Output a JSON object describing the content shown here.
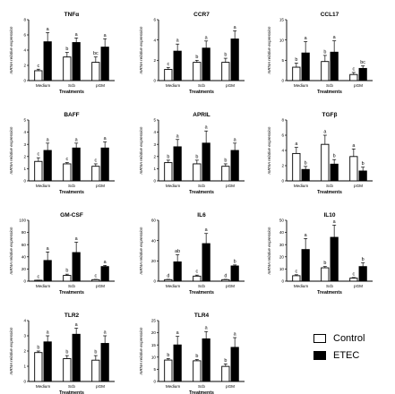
{
  "legend": {
    "control_label": "Control",
    "etec_label": "ETEC",
    "control_color": "#ffffff",
    "etec_color": "#000000"
  },
  "chart_data": [
    {
      "type": "bar",
      "title": "TNFα",
      "ylabel": "mRNA relative expression",
      "xlabel": "Treatments",
      "categories": [
        "Medium",
        "Scb",
        "pGM"
      ],
      "ylim": [
        0,
        8
      ],
      "yticks": [
        0,
        2,
        4,
        6,
        8
      ],
      "series": [
        {
          "name": "Control",
          "values": [
            1.3,
            3.1,
            2.4
          ],
          "errors": [
            0.2,
            0.6,
            0.7
          ],
          "letters": [
            "c",
            "b",
            "bc"
          ]
        },
        {
          "name": "ETEC",
          "values": [
            5.1,
            5.0,
            4.4
          ],
          "errors": [
            1.2,
            0.6,
            1.1
          ],
          "letters": [
            "a",
            "a",
            "a"
          ]
        }
      ]
    },
    {
      "type": "bar",
      "title": "CCR7",
      "ylabel": "mRNA relative expression",
      "xlabel": "Treatments",
      "categories": [
        "Medium",
        "Scb",
        "pGM"
      ],
      "ylim": [
        0,
        6
      ],
      "yticks": [
        0,
        2,
        4,
        6
      ],
      "series": [
        {
          "name": "Control",
          "values": [
            1.1,
            1.8,
            1.8
          ],
          "errors": [
            0.2,
            0.2,
            0.4
          ],
          "letters": [
            "c",
            "b",
            "b"
          ]
        },
        {
          "name": "ETEC",
          "values": [
            2.9,
            3.2,
            4.1
          ],
          "errors": [
            0.7,
            0.7,
            0.8
          ],
          "letters": [
            "a",
            "a",
            "a"
          ]
        }
      ]
    },
    {
      "type": "bar",
      "title": "CCL17",
      "ylabel": "mRNA relative expression",
      "xlabel": "Treatments",
      "categories": [
        "Medium",
        "Scb",
        "pGM"
      ],
      "ylim": [
        0,
        15
      ],
      "yticks": [
        0,
        5,
        10,
        15
      ],
      "series": [
        {
          "name": "Control",
          "values": [
            3.3,
            4.7,
            1.5
          ],
          "errors": [
            1.0,
            1.5,
            0.5
          ],
          "letters": [
            "b",
            "b",
            "c"
          ]
        },
        {
          "name": "ETEC",
          "values": [
            6.8,
            7.0,
            3.0
          ],
          "errors": [
            2.8,
            2.8,
            0.6
          ],
          "letters": [
            "a",
            "a",
            "bc"
          ]
        }
      ]
    },
    {
      "type": "bar",
      "title": "BAFF",
      "ylabel": "mRNA relative expression",
      "xlabel": "Treatments",
      "categories": [
        "Medium",
        "Scb",
        "pGM"
      ],
      "ylim": [
        0,
        5
      ],
      "yticks": [
        0,
        1,
        2,
        3,
        4,
        5
      ],
      "series": [
        {
          "name": "Control",
          "values": [
            1.6,
            1.4,
            1.2
          ],
          "errors": [
            0.3,
            0.1,
            0.2
          ],
          "letters": [
            "c",
            "c",
            "c"
          ]
        },
        {
          "name": "ETEC",
          "values": [
            2.5,
            2.7,
            2.7
          ],
          "errors": [
            0.6,
            0.4,
            0.5
          ],
          "letters": [
            "a",
            "a",
            "a"
          ]
        }
      ]
    },
    {
      "type": "bar",
      "title": "APRIL",
      "ylabel": "mRNA relative expression",
      "xlabel": "Treatments",
      "categories": [
        "Medium",
        "Scb",
        "pGM"
      ],
      "ylim": [
        0,
        5
      ],
      "yticks": [
        0,
        1,
        2,
        3,
        4,
        5
      ],
      "series": [
        {
          "name": "Control",
          "values": [
            1.5,
            1.4,
            1.2
          ],
          "errors": [
            0.2,
            0.3,
            0.2
          ],
          "letters": [
            "b",
            "b",
            "b"
          ]
        },
        {
          "name": "ETEC",
          "values": [
            2.8,
            3.1,
            2.5
          ],
          "errors": [
            0.6,
            1.0,
            0.6
          ],
          "letters": [
            "a",
            "a",
            "a"
          ]
        }
      ]
    },
    {
      "type": "bar",
      "title": "TGFβ",
      "ylabel": "mRNA relative expression",
      "xlabel": "Treatments",
      "categories": [
        "Medium",
        "Scb",
        "pGM"
      ],
      "ylim": [
        0,
        8
      ],
      "yticks": [
        0,
        2,
        4,
        6,
        8
      ],
      "series": [
        {
          "name": "Control",
          "values": [
            3.6,
            4.8,
            3.2
          ],
          "errors": [
            0.8,
            1.2,
            1.0
          ],
          "letters": [
            "a",
            "a",
            "a"
          ]
        },
        {
          "name": "ETEC",
          "values": [
            1.5,
            2.2,
            1.3
          ],
          "errors": [
            0.4,
            0.6,
            0.5
          ],
          "letters": [
            "b",
            "b",
            "b"
          ]
        }
      ]
    },
    {
      "type": "bar",
      "title": "GM-CSF",
      "ylabel": "mRNA relative expression",
      "xlabel": "Treatments",
      "categories": [
        "Medium",
        "Scb",
        "pGM"
      ],
      "ylim": [
        0,
        100
      ],
      "yticks": [
        0,
        20,
        40,
        60,
        80,
        100
      ],
      "series": [
        {
          "name": "Control",
          "values": [
            1.5,
            9.5,
            2.5
          ],
          "errors": [
            0.3,
            2.0,
            0.5
          ],
          "letters": [
            "c",
            "b",
            "c"
          ]
        },
        {
          "name": "ETEC",
          "values": [
            34,
            47,
            24
          ],
          "errors": [
            14,
            17,
            2
          ],
          "letters": [
            "a",
            "a",
            "a"
          ]
        }
      ]
    },
    {
      "type": "bar",
      "title": "IL6",
      "ylabel": "mRNA relative expression",
      "xlabel": "Treatments",
      "categories": [
        "Medium",
        "Scb",
        "pGM"
      ],
      "ylim": [
        0,
        60
      ],
      "yticks": [
        0,
        20,
        40,
        60
      ],
      "series": [
        {
          "name": "Control",
          "values": [
            1.5,
            5,
            1.5
          ],
          "errors": [
            0.3,
            1,
            0.3
          ],
          "letters": [
            "d",
            "c",
            "d"
          ]
        },
        {
          "name": "ETEC",
          "values": [
            19,
            37,
            15
          ],
          "errors": [
            7,
            10,
            1
          ],
          "letters": [
            "ab",
            "a",
            "b"
          ]
        }
      ]
    },
    {
      "type": "bar",
      "title": "IL10",
      "ylabel": "mRNA relative expression",
      "xlabel": "Treatments",
      "categories": [
        "Medium",
        "Scb",
        "pGM"
      ],
      "ylim": [
        0,
        50
      ],
      "yticks": [
        0,
        10,
        20,
        30,
        40,
        50
      ],
      "series": [
        {
          "name": "Control",
          "values": [
            4.5,
            11,
            2.5
          ],
          "errors": [
            0.8,
            1.0,
            0.5
          ],
          "letters": [
            "c",
            "b",
            "c"
          ]
        },
        {
          "name": "ETEC",
          "values": [
            26,
            36,
            12
          ],
          "errors": [
            9,
            10,
            3
          ],
          "letters": [
            "a",
            "a",
            "b"
          ]
        }
      ]
    },
    {
      "type": "bar",
      "title": "TLR2",
      "ylabel": "mRNA relative expression",
      "xlabel": "Treatments",
      "categories": [
        "Medium",
        "Scb",
        "pGM"
      ],
      "ylim": [
        0,
        4
      ],
      "yticks": [
        0,
        1,
        2,
        3,
        4
      ],
      "series": [
        {
          "name": "Control",
          "values": [
            1.9,
            1.5,
            1.4
          ],
          "errors": [
            0.1,
            0.2,
            0.3
          ],
          "letters": [
            "b",
            "b",
            "b"
          ]
        },
        {
          "name": "ETEC",
          "values": [
            2.6,
            3.1,
            2.5
          ],
          "errors": [
            0.4,
            0.4,
            0.5
          ],
          "letters": [
            "a",
            "a",
            "a"
          ]
        }
      ]
    },
    {
      "type": "bar",
      "title": "TLR4",
      "ylabel": "mRNA relative expression",
      "xlabel": "Treatments",
      "categories": [
        "Medium",
        "Scb",
        "pGM"
      ],
      "ylim": [
        0,
        25
      ],
      "yticks": [
        0,
        5,
        10,
        15,
        20,
        25
      ],
      "series": [
        {
          "name": "Control",
          "values": [
            8.8,
            8.5,
            6.2
          ],
          "errors": [
            0.6,
            0.5,
            1.0
          ],
          "letters": [
            "b",
            "b",
            "b"
          ]
        },
        {
          "name": "ETEC",
          "values": [
            15,
            17.5,
            14
          ],
          "errors": [
            3.5,
            3.0,
            4.0
          ],
          "letters": [
            "a",
            "a",
            "a"
          ]
        }
      ]
    }
  ]
}
